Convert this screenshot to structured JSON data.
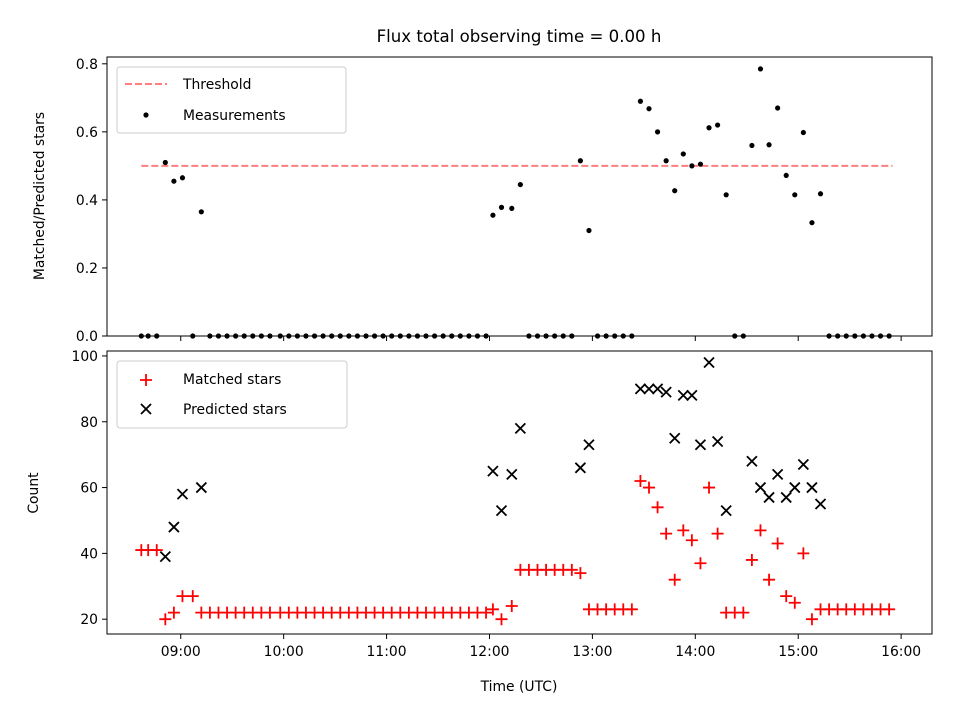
{
  "chart_data": [
    {
      "type": "scatter",
      "title": "Flux total observing time = 0.00 h",
      "xlabel": "",
      "ylabel": "Matched/Predicted stars",
      "xlim": [
        "08:17",
        "16:18"
      ],
      "ylim": [
        0,
        0.82
      ],
      "yticks": [
        "0.0",
        "0.2",
        "0.4",
        "0.6",
        "0.8"
      ],
      "xticks": [
        "09:00",
        "10:00",
        "11:00",
        "12:00",
        "13:00",
        "14:00",
        "15:00",
        "16:00"
      ],
      "xtick_labels_visible": false,
      "grid": false,
      "legend": {
        "position": "top-left",
        "entries": [
          "Threshold",
          "Measurements"
        ]
      },
      "threshold": {
        "name": "Threshold",
        "value": 0.5,
        "x_start": "08:37",
        "x_end": "15:55",
        "color": "#ff7f7f",
        "style": "dashed"
      },
      "series": [
        {
          "name": "Measurements",
          "color": "#000000",
          "marker": "dot",
          "points": [
            [
              "08:37",
              0
            ],
            [
              "08:41",
              0
            ],
            [
              "08:46",
              0
            ],
            [
              "08:51",
              0.51
            ],
            [
              "08:56",
              0.455
            ],
            [
              "09:01",
              0.465
            ],
            [
              "09:07",
              0
            ],
            [
              "09:12",
              0.365
            ],
            [
              "09:17",
              0
            ],
            [
              "09:22",
              0
            ],
            [
              "09:27",
              0
            ],
            [
              "09:32",
              0
            ],
            [
              "09:37",
              0
            ],
            [
              "09:42",
              0
            ],
            [
              "09:47",
              0
            ],
            [
              "09:52",
              0
            ],
            [
              "09:58",
              0
            ],
            [
              "10:03",
              0
            ],
            [
              "10:08",
              0
            ],
            [
              "10:13",
              0
            ],
            [
              "10:18",
              0
            ],
            [
              "10:23",
              0
            ],
            [
              "10:28",
              0
            ],
            [
              "10:33",
              0
            ],
            [
              "10:38",
              0
            ],
            [
              "10:43",
              0
            ],
            [
              "10:48",
              0
            ],
            [
              "10:53",
              0
            ],
            [
              "10:58",
              0
            ],
            [
              "11:03",
              0
            ],
            [
              "11:08",
              0
            ],
            [
              "11:13",
              0
            ],
            [
              "11:18",
              0
            ],
            [
              "11:23",
              0
            ],
            [
              "11:28",
              0
            ],
            [
              "11:33",
              0
            ],
            [
              "11:38",
              0
            ],
            [
              "11:43",
              0
            ],
            [
              "11:48",
              0
            ],
            [
              "11:53",
              0
            ],
            [
              "11:58",
              0
            ],
            [
              "12:02",
              0.355
            ],
            [
              "12:07",
              0.378
            ],
            [
              "12:13",
              0.375
            ],
            [
              "12:18",
              0.445
            ],
            [
              "12:23",
              0
            ],
            [
              "12:28",
              0
            ],
            [
              "12:33",
              0
            ],
            [
              "12:38",
              0
            ],
            [
              "12:43",
              0
            ],
            [
              "12:48",
              0
            ],
            [
              "12:53",
              0.515
            ],
            [
              "12:58",
              0.31
            ],
            [
              "13:03",
              0
            ],
            [
              "13:08",
              0
            ],
            [
              "13:13",
              0
            ],
            [
              "13:18",
              0
            ],
            [
              "13:23",
              0
            ],
            [
              "13:28",
              0.69
            ],
            [
              "13:33",
              0.668
            ],
            [
              "13:38",
              0.6
            ],
            [
              "13:43",
              0.515
            ],
            [
              "13:48",
              0.427
            ],
            [
              "13:53",
              0.535
            ],
            [
              "13:58",
              0.5
            ],
            [
              "14:03",
              0.505
            ],
            [
              "14:08",
              0.612
            ],
            [
              "14:13",
              0.62
            ],
            [
              "14:18",
              0.415
            ],
            [
              "14:23",
              0
            ],
            [
              "14:28",
              0
            ],
            [
              "14:33",
              0.56
            ],
            [
              "14:38",
              0.785
            ],
            [
              "14:43",
              0.562
            ],
            [
              "14:48",
              0.67
            ],
            [
              "14:53",
              0.472
            ],
            [
              "14:58",
              0.415
            ],
            [
              "15:03",
              0.598
            ],
            [
              "15:08",
              0.333
            ],
            [
              "15:13",
              0.418
            ],
            [
              "15:18",
              0
            ],
            [
              "15:23",
              0
            ],
            [
              "15:28",
              0
            ],
            [
              "15:33",
              0
            ],
            [
              "15:38",
              0
            ],
            [
              "15:43",
              0
            ],
            [
              "15:48",
              0
            ],
            [
              "15:53",
              0
            ]
          ]
        }
      ]
    },
    {
      "type": "scatter",
      "title": "",
      "xlabel": "Time (UTC)",
      "ylabel": "Count",
      "xlim": [
        "08:17",
        "16:18"
      ],
      "ylim": [
        15.5,
        101.5
      ],
      "yticks": [
        "20",
        "40",
        "60",
        "80",
        "100"
      ],
      "xticks": [
        "09:00",
        "10:00",
        "11:00",
        "12:00",
        "13:00",
        "14:00",
        "15:00",
        "16:00"
      ],
      "grid": false,
      "legend": {
        "position": "top-left",
        "entries": [
          "Matched stars",
          "Predicted stars"
        ]
      },
      "series": [
        {
          "name": "Matched stars",
          "color": "#ff0000",
          "marker": "plus",
          "points": [
            [
              "08:37",
              41
            ],
            [
              "08:41",
              41
            ],
            [
              "08:46",
              41
            ],
            [
              "08:51",
              20
            ],
            [
              "08:56",
              22
            ],
            [
              "09:01",
              27
            ],
            [
              "09:07",
              27
            ],
            [
              "09:12",
              22
            ],
            [
              "09:17",
              22
            ],
            [
              "09:22",
              22
            ],
            [
              "09:27",
              22
            ],
            [
              "09:32",
              22
            ],
            [
              "09:37",
              22
            ],
            [
              "09:42",
              22
            ],
            [
              "09:47",
              22
            ],
            [
              "09:52",
              22
            ],
            [
              "09:58",
              22
            ],
            [
              "10:03",
              22
            ],
            [
              "10:08",
              22
            ],
            [
              "10:13",
              22
            ],
            [
              "10:18",
              22
            ],
            [
              "10:23",
              22
            ],
            [
              "10:28",
              22
            ],
            [
              "10:33",
              22
            ],
            [
              "10:38",
              22
            ],
            [
              "10:43",
              22
            ],
            [
              "10:48",
              22
            ],
            [
              "10:53",
              22
            ],
            [
              "10:58",
              22
            ],
            [
              "11:03",
              22
            ],
            [
              "11:08",
              22
            ],
            [
              "11:13",
              22
            ],
            [
              "11:18",
              22
            ],
            [
              "11:23",
              22
            ],
            [
              "11:28",
              22
            ],
            [
              "11:33",
              22
            ],
            [
              "11:38",
              22
            ],
            [
              "11:43",
              22
            ],
            [
              "11:48",
              22
            ],
            [
              "11:53",
              22
            ],
            [
              "11:58",
              22
            ],
            [
              "12:02",
              23
            ],
            [
              "12:07",
              20
            ],
            [
              "12:13",
              24
            ],
            [
              "12:18",
              35
            ],
            [
              "12:23",
              35
            ],
            [
              "12:28",
              35
            ],
            [
              "12:33",
              35
            ],
            [
              "12:38",
              35
            ],
            [
              "12:43",
              35
            ],
            [
              "12:48",
              35
            ],
            [
              "12:53",
              34
            ],
            [
              "12:58",
              23
            ],
            [
              "13:03",
              23
            ],
            [
              "13:08",
              23
            ],
            [
              "13:13",
              23
            ],
            [
              "13:18",
              23
            ],
            [
              "13:23",
              23
            ],
            [
              "13:28",
              62
            ],
            [
              "13:33",
              60
            ],
            [
              "13:38",
              54
            ],
            [
              "13:43",
              46
            ],
            [
              "13:48",
              32
            ],
            [
              "13:53",
              47
            ],
            [
              "13:58",
              44
            ],
            [
              "14:03",
              37
            ],
            [
              "14:08",
              60
            ],
            [
              "14:13",
              46
            ],
            [
              "14:18",
              22
            ],
            [
              "14:23",
              22
            ],
            [
              "14:28",
              22
            ],
            [
              "14:33",
              38
            ],
            [
              "14:38",
              47
            ],
            [
              "14:43",
              32
            ],
            [
              "14:48",
              43
            ],
            [
              "14:53",
              27
            ],
            [
              "14:58",
              25
            ],
            [
              "15:03",
              40
            ],
            [
              "15:08",
              20
            ],
            [
              "15:13",
              23
            ],
            [
              "15:18",
              23
            ],
            [
              "15:23",
              23
            ],
            [
              "15:28",
              23
            ],
            [
              "15:33",
              23
            ],
            [
              "15:38",
              23
            ],
            [
              "15:43",
              23
            ],
            [
              "15:48",
              23
            ],
            [
              "15:53",
              23
            ]
          ]
        },
        {
          "name": "Predicted stars",
          "color": "#000000",
          "marker": "x",
          "points": [
            [
              "08:51",
              39
            ],
            [
              "08:56",
              48
            ],
            [
              "09:01",
              58
            ],
            [
              "09:12",
              60
            ],
            [
              "12:02",
              65
            ],
            [
              "12:07",
              53
            ],
            [
              "12:13",
              64
            ],
            [
              "12:18",
              78
            ],
            [
              "12:53",
              66
            ],
            [
              "12:58",
              73
            ],
            [
              "13:28",
              90
            ],
            [
              "13:33",
              90
            ],
            [
              "13:38",
              90
            ],
            [
              "13:43",
              89
            ],
            [
              "13:48",
              75
            ],
            [
              "13:53",
              88
            ],
            [
              "13:58",
              88
            ],
            [
              "14:03",
              73
            ],
            [
              "14:08",
              98
            ],
            [
              "14:13",
              74
            ],
            [
              "14:18",
              53
            ],
            [
              "14:33",
              68
            ],
            [
              "14:38",
              60
            ],
            [
              "14:43",
              57
            ],
            [
              "14:48",
              64
            ],
            [
              "14:53",
              57
            ],
            [
              "14:58",
              60
            ],
            [
              "15:03",
              67
            ],
            [
              "15:08",
              60
            ],
            [
              "15:13",
              55
            ]
          ]
        }
      ]
    }
  ]
}
